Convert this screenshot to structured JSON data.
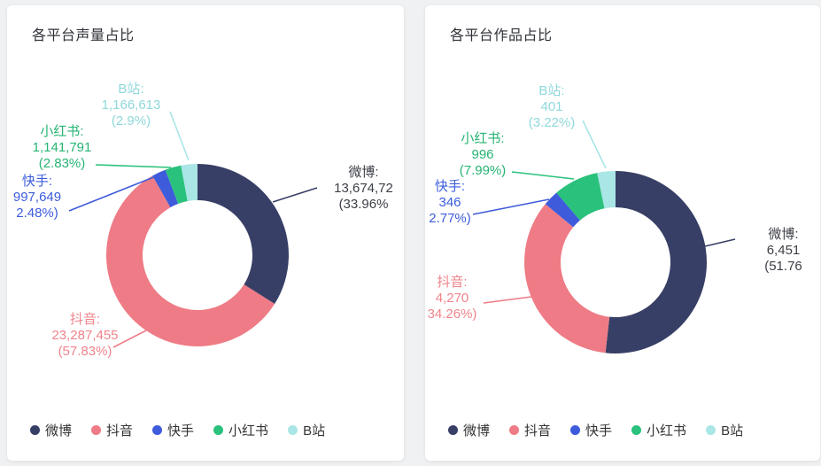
{
  "chart_data": [
    {
      "type": "pie",
      "subtype": "donut",
      "title": "各平台声量占比",
      "legend_position": "bottom",
      "legend": [
        "微博",
        "抖音",
        "快手",
        "小红书",
        "B站"
      ],
      "series": [
        {
          "name": "微博",
          "value": "13,674,72",
          "percent": 33.96,
          "color": "#383f66",
          "label_color": "#3d3f47",
          "label": [
            "微博:",
            "13,674,72",
            "(33.96%"
          ]
        },
        {
          "name": "抖音",
          "value": "23,287,455",
          "percent": 57.83,
          "color": "#ee7b85",
          "label_color": "#ef848c",
          "label": [
            "抖音:",
            "23,287,455",
            "(57.83%)"
          ]
        },
        {
          "name": "快手",
          "value": "997,649",
          "percent": 2.48,
          "color": "#3e5bdb",
          "label_color": "#3c5cdd",
          "label": [
            "快手:",
            "997,649",
            "2.48%)"
          ]
        },
        {
          "name": "小红书",
          "value": "1,141,791",
          "percent": 2.83,
          "color": "#2ac17c",
          "label_color": "#27b473",
          "label": [
            "小红书:",
            "1,141,791",
            "(2.83%)"
          ]
        },
        {
          "name": "B站",
          "value": "1,166,613",
          "percent": 2.9,
          "color": "#a9e6e5",
          "label_color": "#8fd8da",
          "label": [
            "B站:",
            "1,166,613",
            "(2.9%)"
          ]
        }
      ]
    },
    {
      "type": "pie",
      "subtype": "donut",
      "title": "各平台作品占比",
      "legend_position": "bottom",
      "legend": [
        "微博",
        "抖音",
        "快手",
        "小红书",
        "B站"
      ],
      "series": [
        {
          "name": "微博",
          "value": "6,451",
          "percent": 51.76,
          "color": "#383f66",
          "label_color": "#3d3f47",
          "label": [
            "微博:",
            "6,451",
            "(51.76"
          ]
        },
        {
          "name": "抖音",
          "value": "4,270",
          "percent": 34.26,
          "color": "#ee7b85",
          "label_color": "#ef848c",
          "label": [
            "抖音:",
            "4,270",
            "34.26%)"
          ]
        },
        {
          "name": "快手",
          "value": "346",
          "percent": 2.77,
          "color": "#3e5bdb",
          "label_color": "#3c5cdd",
          "label": [
            "快手:",
            "346",
            "2.77%)"
          ]
        },
        {
          "name": "小红书",
          "value": "996",
          "percent": 7.99,
          "color": "#2ac17c",
          "label_color": "#27b473",
          "label": [
            "小红书:",
            "996",
            "(7.99%)"
          ]
        },
        {
          "name": "B站",
          "value": "401",
          "percent": 3.22,
          "color": "#a9e6e5",
          "label_color": "#8fd8da",
          "label": [
            "B站:",
            "401",
            "(3.22%)"
          ]
        }
      ]
    }
  ]
}
